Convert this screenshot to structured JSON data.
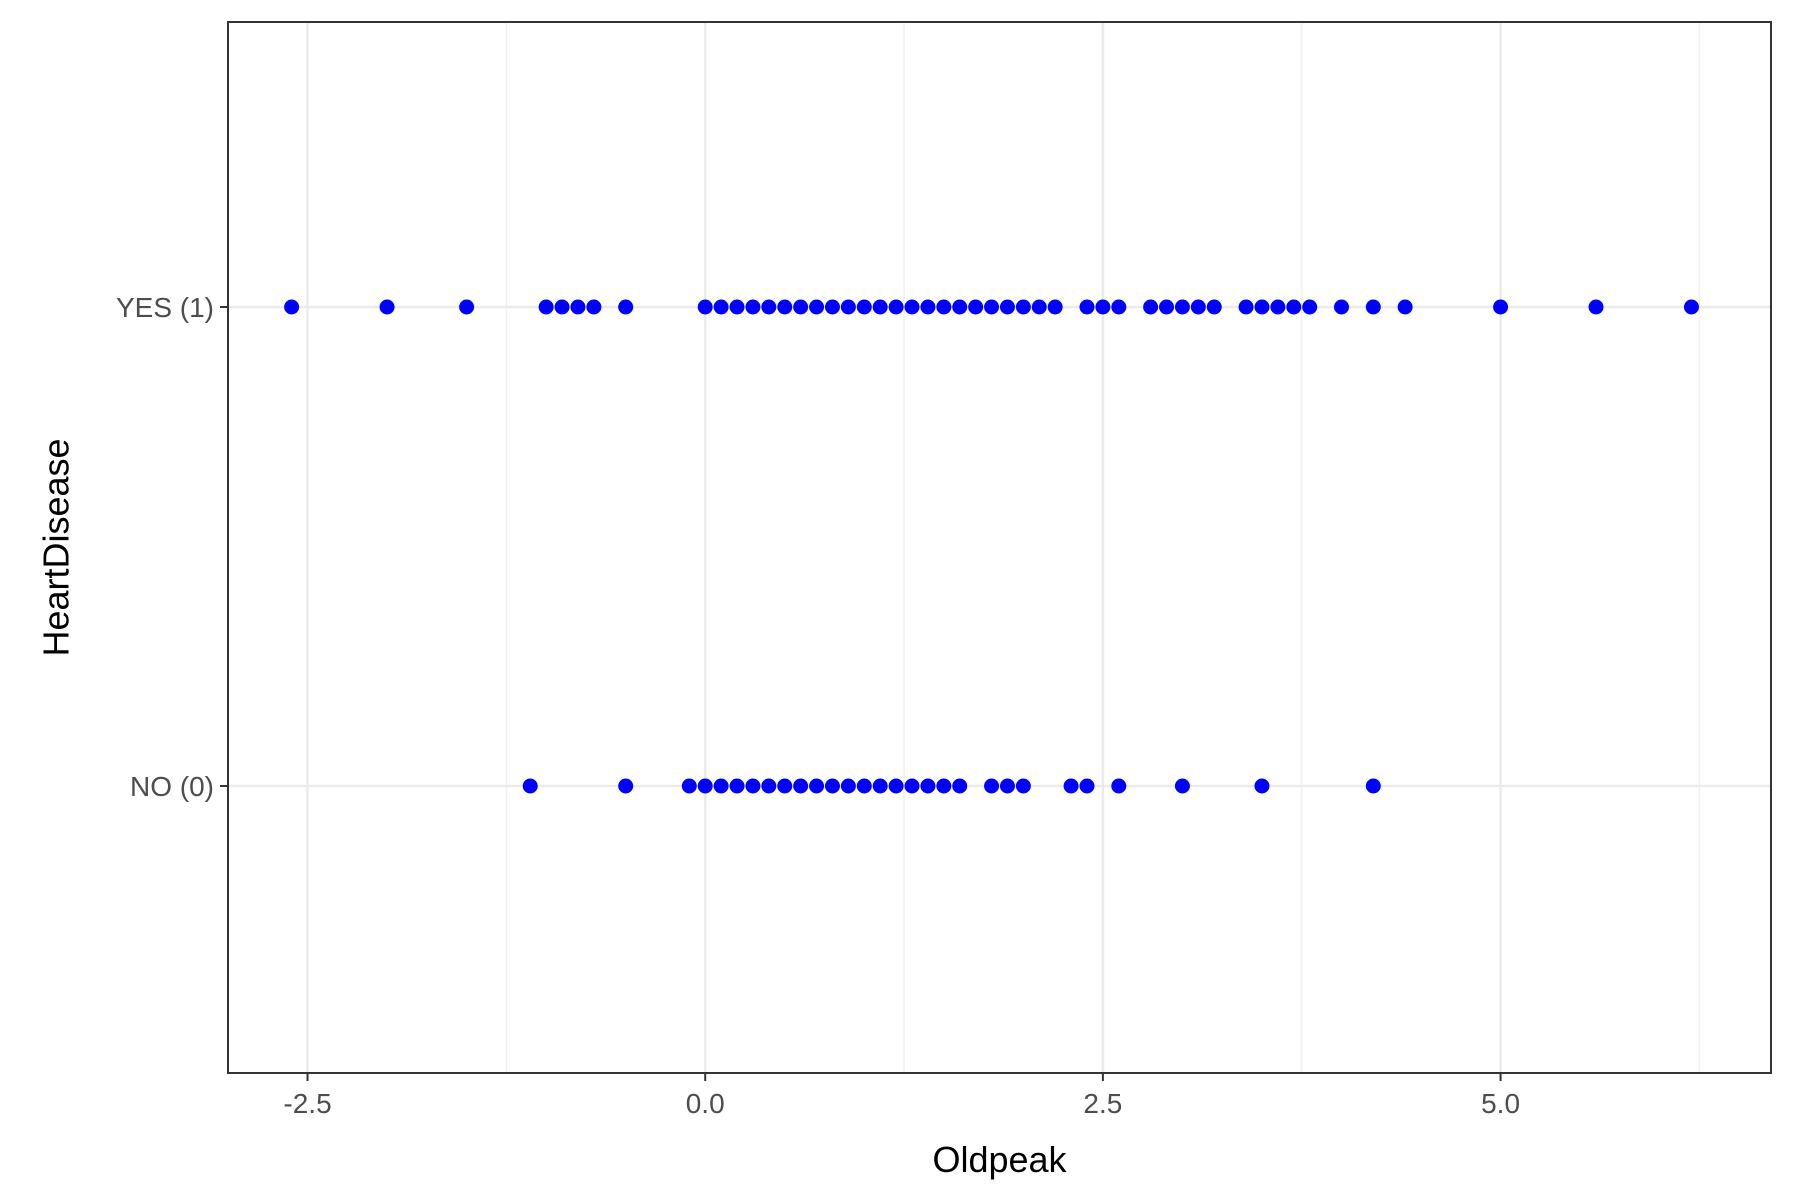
{
  "chart_data": {
    "type": "scatter",
    "title": "",
    "xlabel": "Oldpeak",
    "ylabel": "HeartDisease",
    "xlim": [
      -3.0,
      6.7
    ],
    "x_ticks": [
      -2.5,
      0.0,
      2.5,
      5.0
    ],
    "x_tick_labels": [
      "-2.5",
      "0.0",
      "2.5",
      "5.0"
    ],
    "categories": [
      "NO (0)",
      "YES (1)"
    ],
    "grid": true,
    "point_color": "#0000ff",
    "series": [
      {
        "category": "YES (1)",
        "x": [
          -2.6,
          -2.0,
          -1.5,
          -1.0,
          -0.9,
          -0.8,
          -0.7,
          -0.5,
          0.0,
          0.1,
          0.2,
          0.3,
          0.4,
          0.5,
          0.6,
          0.7,
          0.8,
          0.9,
          1.0,
          1.1,
          1.2,
          1.3,
          1.4,
          1.5,
          1.6,
          1.7,
          1.8,
          1.9,
          2.0,
          2.1,
          2.2,
          2.4,
          2.5,
          2.6,
          2.8,
          2.9,
          3.0,
          3.1,
          3.2,
          3.4,
          3.5,
          3.6,
          3.7,
          3.8,
          4.0,
          4.2,
          4.4,
          5.0,
          5.6,
          6.2
        ]
      },
      {
        "category": "NO (0)",
        "x": [
          -1.1,
          -0.5,
          -0.1,
          0.0,
          0.1,
          0.2,
          0.3,
          0.4,
          0.5,
          0.6,
          0.7,
          0.8,
          0.9,
          1.0,
          1.1,
          1.2,
          1.3,
          1.4,
          1.5,
          1.6,
          1.8,
          1.9,
          2.0,
          2.3,
          2.4,
          2.6,
          3.0,
          3.5,
          4.2
        ]
      }
    ]
  }
}
